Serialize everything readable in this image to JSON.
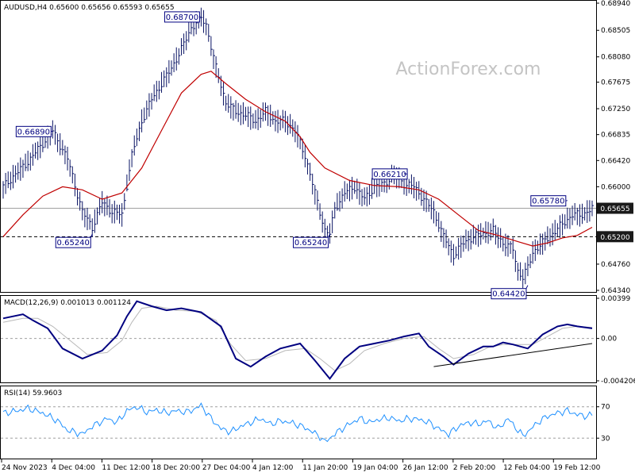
{
  "colors": {
    "price_bars": "#0a1464",
    "ma": "#c00000",
    "macd_line": "#000080",
    "signal_line": "#b8b8b8",
    "rsi": "#1e90ff",
    "callout": "#000080",
    "level_box": "#1a1a1a"
  },
  "watermark": "ActionForex.com",
  "chart_data": [
    {
      "type": "line",
      "panel": "price",
      "header": "AUDUSD,H4  0.65600 0.65656 0.65593 0.65655",
      "ylim": [
        0.6434,
        0.6894
      ],
      "y_ticks": [
        "0.68940",
        "0.68505",
        "0.68080",
        "0.67675",
        "0.67250",
        "0.66835",
        "0.66420",
        "0.66000",
        "0.65200",
        "0.64760",
        "0.64340"
      ],
      "x_categories": [
        "24 Nov 2023",
        "4 Dec 04:00",
        "11 Dec 12:00",
        "18 Dec 20:00",
        "27 Dec 04:00",
        "4 Jan 12:00",
        "11 Jan 20:00",
        "19 Jan 04:00",
        "26 Jan 12:00",
        "2 Feb 20:00",
        "12 Feb 04:00",
        "19 Feb 12:00"
      ],
      "series": [
        {
          "kind": "price",
          "points": [
            [
              0,
              0.66
            ],
            [
              5,
              0.664
            ],
            [
              10,
              0.6689
            ],
            [
              13,
              0.6645
            ],
            [
              16,
              0.656
            ],
            [
              18,
              0.6535
            ],
            [
              20,
              0.6575
            ],
            [
              22,
              0.656
            ],
            [
              24,
              0.6555
            ],
            [
              26,
              0.665
            ],
            [
              28,
              0.6705
            ],
            [
              30,
              0.674
            ],
            [
              32,
              0.6765
            ],
            [
              34,
              0.679
            ],
            [
              36,
              0.682
            ],
            [
              38,
              0.6855
            ],
            [
              40,
              0.687
            ],
            [
              41,
              0.686
            ],
            [
              43,
              0.679
            ],
            [
              45,
              0.6735
            ],
            [
              47,
              0.672
            ],
            [
              49,
              0.6715
            ],
            [
              51,
              0.6705
            ],
            [
              53,
              0.672
            ],
            [
              55,
              0.6705
            ],
            [
              57,
              0.6705
            ],
            [
              59,
              0.669
            ],
            [
              61,
              0.665
            ],
            [
              63,
              0.659
            ],
            [
              65,
              0.653
            ],
            [
              66,
              0.6524
            ],
            [
              67,
              0.6565
            ],
            [
              69,
              0.659
            ],
            [
              71,
              0.66
            ],
            [
              73,
              0.658
            ],
            [
              75,
              0.66
            ],
            [
              77,
              0.6605
            ],
            [
              79,
              0.662
            ],
            [
              81,
              0.6605
            ],
            [
              83,
              0.66
            ],
            [
              85,
              0.658
            ],
            [
              87,
              0.656
            ],
            [
              89,
              0.652
            ],
            [
              91,
              0.649
            ],
            [
              93,
              0.651
            ],
            [
              95,
              0.652
            ],
            [
              97,
              0.6525
            ],
            [
              99,
              0.653
            ],
            [
              101,
              0.651
            ],
            [
              103,
              0.65
            ],
            [
              104,
              0.6465
            ],
            [
              105,
              0.6455
            ],
            [
              106,
              0.647
            ],
            [
              107,
              0.6495
            ],
            [
              109,
              0.651
            ],
            [
              111,
              0.6525
            ],
            [
              113,
              0.654
            ],
            [
              115,
              0.6555
            ],
            [
              117,
              0.6555
            ],
            [
              119,
              0.6565
            ]
          ]
        },
        {
          "kind": "ma",
          "points": [
            [
              0,
              0.652
            ],
            [
              4,
              0.6555
            ],
            [
              8,
              0.6585
            ],
            [
              12,
              0.66
            ],
            [
              16,
              0.6595
            ],
            [
              20,
              0.658
            ],
            [
              24,
              0.659
            ],
            [
              28,
              0.663
            ],
            [
              32,
              0.669
            ],
            [
              36,
              0.675
            ],
            [
              40,
              0.678
            ],
            [
              42,
              0.6785
            ],
            [
              45,
              0.6765
            ],
            [
              49,
              0.674
            ],
            [
              53,
              0.672
            ],
            [
              57,
              0.6705
            ],
            [
              60,
              0.668
            ],
            [
              62,
              0.6655
            ],
            [
              65,
              0.663
            ],
            [
              70,
              0.661
            ],
            [
              75,
              0.6602
            ],
            [
              80,
              0.66
            ],
            [
              84,
              0.6595
            ],
            [
              88,
              0.658
            ],
            [
              92,
              0.6555
            ],
            [
              96,
              0.653
            ],
            [
              100,
              0.6522
            ],
            [
              104,
              0.6512
            ],
            [
              107,
              0.6505
            ],
            [
              110,
              0.651
            ],
            [
              113,
              0.6518
            ],
            [
              116,
              0.6522
            ],
            [
              119,
              0.6535
            ]
          ]
        }
      ],
      "levels": [
        {
          "value": 0.65655,
          "label": "0.65655",
          "style": "solid"
        },
        {
          "value": 0.652,
          "label": "0.65200",
          "style": "dashed"
        }
      ],
      "annotations": [
        {
          "x": 40,
          "y": 0.687,
          "label": "0.68700"
        },
        {
          "x": 10,
          "y": 0.6689,
          "label": "0.66890"
        },
        {
          "x": 18,
          "y": 0.6524,
          "label": "0.65240"
        },
        {
          "x": 66,
          "y": 0.6524,
          "label": "0.65240"
        },
        {
          "x": 81,
          "y": 0.6621,
          "label": "0.66210"
        },
        {
          "x": 106,
          "y": 0.6442,
          "label": "0.64420"
        },
        {
          "x": 114,
          "y": 0.6578,
          "label": "0.65780"
        }
      ]
    },
    {
      "type": "line",
      "panel": "macd",
      "header": "MACD(12,26,9) 0.001013 0.001124",
      "ylim": [
        -0.004206,
        0.00399
      ],
      "y_ticks": [
        "0.00399",
        "0.00",
        "-0.004206"
      ],
      "series": [
        {
          "kind": "macd",
          "points": [
            [
              0,
              0.002
            ],
            [
              4,
              0.0024
            ],
            [
              6,
              0.0018
            ],
            [
              9,
              0.001
            ],
            [
              12,
              -0.001
            ],
            [
              16,
              -0.002
            ],
            [
              20,
              -0.0012
            ],
            [
              23,
              0.0003
            ],
            [
              25,
              0.0022
            ],
            [
              27,
              0.0037
            ],
            [
              30,
              0.0032
            ],
            [
              33,
              0.0028
            ],
            [
              36,
              0.003
            ],
            [
              40,
              0.0026
            ],
            [
              44,
              0.0012
            ],
            [
              47,
              -0.002
            ],
            [
              50,
              -0.0028
            ],
            [
              53,
              -0.0018
            ],
            [
              56,
              -0.001
            ],
            [
              60,
              -0.0005
            ],
            [
              63,
              -0.0022
            ],
            [
              66,
              -0.004
            ],
            [
              69,
              -0.002
            ],
            [
              72,
              -0.0008
            ],
            [
              75,
              -0.0005
            ],
            [
              78,
              -0.0002
            ],
            [
              81,
              0.0002
            ],
            [
              84,
              0.0005
            ],
            [
              86,
              -0.0008
            ],
            [
              89,
              -0.0018
            ],
            [
              91,
              -0.0026
            ],
            [
              94,
              -0.0015
            ],
            [
              97,
              -0.0008
            ],
            [
              99,
              -0.0008
            ],
            [
              101,
              -0.0004
            ],
            [
              103,
              -0.0006
            ],
            [
              106,
              -0.001
            ],
            [
              109,
              0.0004
            ],
            [
              112,
              0.0012
            ],
            [
              114,
              0.0014
            ],
            [
              116,
              0.0012
            ],
            [
              119,
              0.001
            ]
          ]
        },
        {
          "kind": "signal",
          "points": [
            [
              0,
              0.0016
            ],
            [
              4,
              0.002
            ],
            [
              7,
              0.002
            ],
            [
              10,
              0.0012
            ],
            [
              13,
              0.0
            ],
            [
              17,
              -0.0016
            ],
            [
              21,
              -0.0014
            ],
            [
              24,
              -0.0002
            ],
            [
              26,
              0.0016
            ],
            [
              28,
              0.003
            ],
            [
              31,
              0.0032
            ],
            [
              35,
              0.0028
            ],
            [
              39,
              0.0027
            ],
            [
              43,
              0.0018
            ],
            [
              46,
              -0.0006
            ],
            [
              49,
              -0.0022
            ],
            [
              53,
              -0.002
            ],
            [
              57,
              -0.0012
            ],
            [
              61,
              -0.001
            ],
            [
              64,
              -0.002
            ],
            [
              67,
              -0.0032
            ],
            [
              70,
              -0.0025
            ],
            [
              73,
              -0.0012
            ],
            [
              77,
              -0.0005
            ],
            [
              81,
              0.0
            ],
            [
              85,
              0.0002
            ],
            [
              88,
              -0.001
            ],
            [
              91,
              -0.002
            ],
            [
              95,
              -0.0016
            ],
            [
              98,
              -0.0009
            ],
            [
              101,
              -0.0006
            ],
            [
              104,
              -0.0006
            ],
            [
              107,
              -0.0006
            ],
            [
              110,
              0.0002
            ],
            [
              113,
              0.001
            ],
            [
              116,
              0.0012
            ],
            [
              119,
              0.0011
            ]
          ]
        }
      ],
      "trendline": [
        [
          87,
          -0.0028
        ],
        [
          119,
          -0.0005
        ]
      ],
      "zero_level": 0.0
    },
    {
      "type": "line",
      "panel": "rsi",
      "header": "RSI(14) 59.9603",
      "ylim": [
        5,
        95
      ],
      "y_ticks": [
        "70",
        "30"
      ],
      "levels": [
        70,
        30
      ],
      "series": [
        {
          "kind": "rsi",
          "points": [
            [
              0,
              62
            ],
            [
              3,
              65
            ],
            [
              5,
              68
            ],
            [
              8,
              62
            ],
            [
              11,
              52
            ],
            [
              13,
              40
            ],
            [
              16,
              35
            ],
            [
              18,
              45
            ],
            [
              21,
              55
            ],
            [
              23,
              50
            ],
            [
              25,
              65
            ],
            [
              27,
              70
            ],
            [
              29,
              63
            ],
            [
              31,
              66
            ],
            [
              33,
              62
            ],
            [
              35,
              65
            ],
            [
              37,
              63
            ],
            [
              39,
              68
            ],
            [
              40,
              72
            ],
            [
              42,
              55
            ],
            [
              44,
              42
            ],
            [
              46,
              38
            ],
            [
              48,
              45
            ],
            [
              50,
              50
            ],
            [
              52,
              55
            ],
            [
              54,
              48
            ],
            [
              56,
              52
            ],
            [
              58,
              50
            ],
            [
              60,
              46
            ],
            [
              62,
              40
            ],
            [
              64,
              32
            ],
            [
              65,
              25
            ],
            [
              66,
              30
            ],
            [
              68,
              40
            ],
            [
              70,
              48
            ],
            [
              72,
              55
            ],
            [
              74,
              50
            ],
            [
              76,
              54
            ],
            [
              78,
              56
            ],
            [
              80,
              52
            ],
            [
              82,
              55
            ],
            [
              84,
              54
            ],
            [
              86,
              50
            ],
            [
              88,
              42
            ],
            [
              90,
              35
            ],
            [
              92,
              45
            ],
            [
              94,
              50
            ],
            [
              96,
              48
            ],
            [
              98,
              52
            ],
            [
              100,
              42
            ],
            [
              102,
              55
            ],
            [
              104,
              40
            ],
            [
              105,
              33
            ],
            [
              106,
              38
            ],
            [
              108,
              50
            ],
            [
              110,
              58
            ],
            [
              112,
              62
            ],
            [
              114,
              65
            ],
            [
              116,
              60
            ],
            [
              118,
              58
            ],
            [
              119,
              60
            ]
          ]
        }
      ]
    }
  ]
}
